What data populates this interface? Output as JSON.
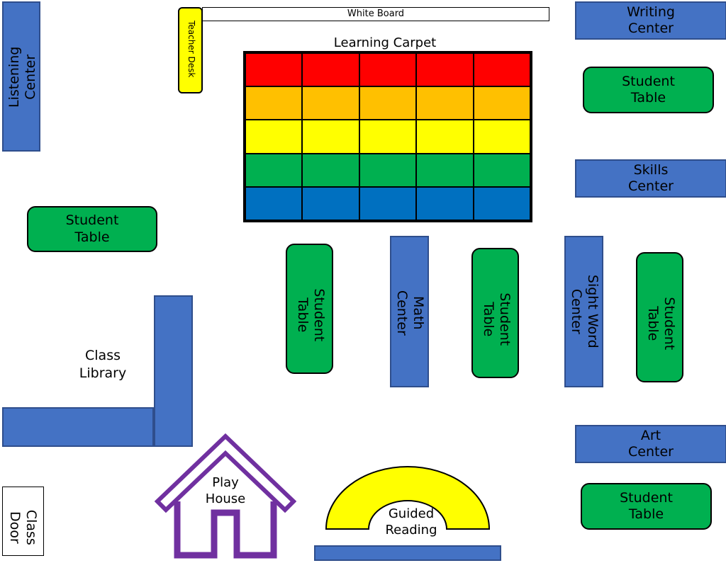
{
  "board": {
    "label": "White Board"
  },
  "teacher_desk": {
    "label": "Teacher Desk"
  },
  "carpet": {
    "title": "Learning Carpet",
    "row_colors": [
      "#ff0000",
      "#ffc000",
      "#ffff00",
      "#00b050",
      "#0070c0"
    ]
  },
  "centers": {
    "listening": "Listening\nCenter",
    "writing": "Writing\nCenter",
    "skills": "Skills\nCenter",
    "math": "Math\nCenter",
    "sight_word": "Sight Word\nCenter",
    "art": "Art\nCenter"
  },
  "student_table": "Student\nTable",
  "class_library": "Class\nLibrary",
  "play_house": "Play\nHouse",
  "guided_reading": "Guided\nReading",
  "class_door": "Class\nDoor"
}
